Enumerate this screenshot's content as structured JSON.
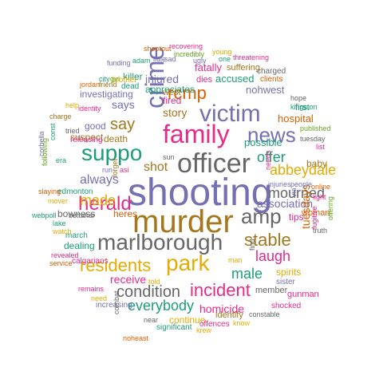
{
  "palette": {
    "teal": "#1b9e77",
    "orange": "#d95f02",
    "purple": "#7570b3",
    "magenta": "#e7298a",
    "green": "#66a61e",
    "gold": "#e6ab02",
    "brown": "#a6761d",
    "gray": "#666666"
  },
  "words": [
    {
      "text": "shooting",
      "color": "#7570b3"
    },
    {
      "text": "murder",
      "color": "#a6761d"
    },
    {
      "text": "officer",
      "color": "#666666"
    },
    {
      "text": "marlborough",
      "color": "#666666"
    },
    {
      "text": "family",
      "color": "#e7298a"
    },
    {
      "text": "victim",
      "color": "#7570b3"
    },
    {
      "text": "crime",
      "color": "#7570b3"
    },
    {
      "text": "park",
      "color": "#e6ab02"
    },
    {
      "text": "amp",
      "color": "#666666"
    },
    {
      "text": "news",
      "color": "#7570b3"
    },
    {
      "text": "suppo",
      "color": "#1b9e77"
    },
    {
      "text": "herald",
      "color": "#e7298a"
    },
    {
      "text": "residents",
      "color": "#e6ab02"
    },
    {
      "text": "rcmp",
      "color": "#d95f02"
    },
    {
      "text": "incident",
      "color": "#e7298a"
    },
    {
      "text": "condition",
      "color": "#666666"
    },
    {
      "text": "everybody",
      "color": "#1b9e77"
    },
    {
      "text": "abbeydale",
      "color": "#e6ab02"
    },
    {
      "text": "mourned",
      "color": "#666666"
    },
    {
      "text": "stable",
      "color": "#a6761d"
    },
    {
      "text": "laugh",
      "color": "#e7298a"
    },
    {
      "text": "male",
      "color": "#1b9e77"
    },
    {
      "text": "say",
      "color": "#a6761d"
    },
    {
      "text": "shot",
      "color": "#a6761d"
    },
    {
      "text": "made",
      "color": "#e6ab02"
    },
    {
      "text": "always",
      "color": "#7570b3"
    },
    {
      "text": "offer",
      "color": "#1b9e77"
    },
    {
      "text": "injured",
      "color": "#7570b3"
    },
    {
      "text": "story",
      "color": "#a6761d"
    },
    {
      "text": "association",
      "color": "#7570b3"
    },
    {
      "text": "tuesdays",
      "color": "#d95f02"
    },
    {
      "text": "possible",
      "color": "#1b9e77"
    },
    {
      "text": "hospital",
      "color": "#d95f02"
    },
    {
      "text": "says",
      "color": "#7570b3"
    },
    {
      "text": "nohwest",
      "color": "#7570b3"
    },
    {
      "text": "accused",
      "color": "#1b9e77"
    },
    {
      "text": "appreciates",
      "color": "#1b9e77"
    },
    {
      "text": "fatally",
      "color": "#e7298a"
    },
    {
      "text": "killer",
      "color": "#1b9e77"
    },
    {
      "text": "good",
      "color": "#7570b3"
    },
    {
      "text": "death",
      "color": "#a6761d"
    },
    {
      "text": "suspect",
      "color": "#a6761d"
    },
    {
      "text": "investigating",
      "color": "#7570b3"
    },
    {
      "text": "heres",
      "color": "#d95f02"
    },
    {
      "text": "bowness",
      "color": "#666666"
    },
    {
      "text": "receive",
      "color": "#e7298a"
    },
    {
      "text": "homicide",
      "color": "#e7298a"
    },
    {
      "text": "continue",
      "color": "#e6ab02"
    },
    {
      "text": "identify",
      "color": "#a6761d"
    },
    {
      "text": "spirits",
      "color": "#e6ab02"
    },
    {
      "text": "member",
      "color": "#666666"
    },
    {
      "text": "gunman",
      "color": "#e7298a"
    },
    {
      "text": "dealing",
      "color": "#1b9e77"
    },
    {
      "text": "first",
      "color": "#1b9e77"
    },
    {
      "text": "fired",
      "color": "#e7298a"
    },
    {
      "text": "west",
      "color": "#a6761d"
    },
    {
      "text": "dies",
      "color": "#e7298a"
    },
    {
      "text": "suffering",
      "color": "#a6761d"
    },
    {
      "text": "charged",
      "color": "#666666"
    },
    {
      "text": "clients",
      "color": "#d95f02"
    },
    {
      "text": "baby",
      "color": "#a6761d"
    },
    {
      "text": "tips",
      "color": "#e7298a"
    },
    {
      "text": "woman",
      "color": "#d95f02"
    },
    {
      "text": "sister",
      "color": "#7570b3"
    },
    {
      "text": "shocked",
      "color": "#e7298a"
    },
    {
      "text": "offences",
      "color": "#e7298a"
    },
    {
      "text": "significant",
      "color": "#1b9e77"
    },
    {
      "text": "increasing",
      "color": "#7570b3"
    },
    {
      "text": "calgarians",
      "color": "#e7298a"
    },
    {
      "text": "march",
      "color": "#1b9e77"
    },
    {
      "text": "edmonton",
      "color": "#1b9e77"
    },
    {
      "text": "releasing",
      "color": "#e7298a"
    },
    {
      "text": "dead",
      "color": "#1b9e77"
    },
    {
      "text": "brother",
      "color": "#e6ab02"
    },
    {
      "text": "funding",
      "color": "#7570b3"
    },
    {
      "text": "jordan",
      "color": "#d95f02"
    },
    {
      "text": "friend",
      "color": "#a6761d"
    },
    {
      "text": "city",
      "color": "#1b9e77"
    },
    {
      "text": "girl",
      "color": "#66a61e"
    },
    {
      "text": "adam",
      "color": "#1b9e77"
    },
    {
      "text": "little",
      "color": "#7570b3"
    },
    {
      "text": "sad",
      "color": "#7570b3"
    },
    {
      "text": "incredibly",
      "color": "#66a61e"
    },
    {
      "text": "ugly",
      "color": "#7570b3"
    },
    {
      "text": "one",
      "color": "#1b9e77"
    },
    {
      "text": "young",
      "color": "#e6ab02"
    },
    {
      "text": "threatening",
      "color": "#e7298a"
    },
    {
      "text": "shootout",
      "color": "#d95f02"
    },
    {
      "text": "recovering",
      "color": "#e7298a"
    },
    {
      "text": "hope",
      "color": "#666666"
    },
    {
      "text": "kingston",
      "color": "#1b9e77"
    },
    {
      "text": "published",
      "color": "#66a61e"
    },
    {
      "text": "tuesday",
      "color": "#666666"
    },
    {
      "text": "list",
      "color": "#e7298a"
    },
    {
      "text": "identity",
      "color": "#e7298a"
    },
    {
      "text": "help",
      "color": "#e6ab02"
    },
    {
      "text": "charge",
      "color": "#a6761d"
    },
    {
      "text": "tried",
      "color": "#666666"
    },
    {
      "text": "const",
      "color": "#1b9e77"
    },
    {
      "text": "era",
      "color": "#1b9e77"
    },
    {
      "text": "sun",
      "color": "#666666"
    },
    {
      "text": "asi",
      "color": "#e7298a"
    },
    {
      "text": "run",
      "color": "#7570b3"
    },
    {
      "text": "forget",
      "color": "#a6761d"
    },
    {
      "text": "needs",
      "color": "#e7298a"
    },
    {
      "text": "injuries",
      "color": "#7570b3"
    },
    {
      "text": "people",
      "color": "#7570b3"
    },
    {
      "text": "online",
      "color": "#d95f02"
    },
    {
      "text": "light",
      "color": "#e7298a"
    },
    {
      "text": "truth",
      "color": "#666666"
    },
    {
      "text": "fugitive",
      "color": "#e7298a"
    },
    {
      "text": "offering",
      "color": "#66a61e"
    },
    {
      "text": "via",
      "color": "#7570b3"
    },
    {
      "text": "find",
      "color": "#666666"
    },
    {
      "text": "man",
      "color": "#e6ab02"
    },
    {
      "text": "told",
      "color": "#e6ab02"
    },
    {
      "text": "need",
      "color": "#e6ab02"
    },
    {
      "text": "remains",
      "color": "#e7298a"
    },
    {
      "text": "service",
      "color": "#d95f02"
    },
    {
      "text": "revealed",
      "color": "#e7298a"
    },
    {
      "text": "watch",
      "color": "#e6ab02"
    },
    {
      "text": "lake",
      "color": "#1b9e77"
    },
    {
      "text": "webpoll",
      "color": "#1b9e77"
    },
    {
      "text": "slaying",
      "color": "#d95f02"
    },
    {
      "text": "mover",
      "color": "#e6ab02"
    },
    {
      "text": "bettahar",
      "color": "#666666"
    },
    {
      "text": "corbella",
      "color": "#7570b3"
    },
    {
      "text": "following",
      "color": "#66a61e"
    },
    {
      "text": "combat",
      "color": "#666666"
    },
    {
      "text": "near",
      "color": "#666666"
    },
    {
      "text": "krew",
      "color": "#e6ab02"
    },
    {
      "text": "know",
      "color": "#e6ab02"
    },
    {
      "text": "constable",
      "color": "#666666"
    },
    {
      "text": "noheast",
      "color": "#d95f02"
    }
  ]
}
